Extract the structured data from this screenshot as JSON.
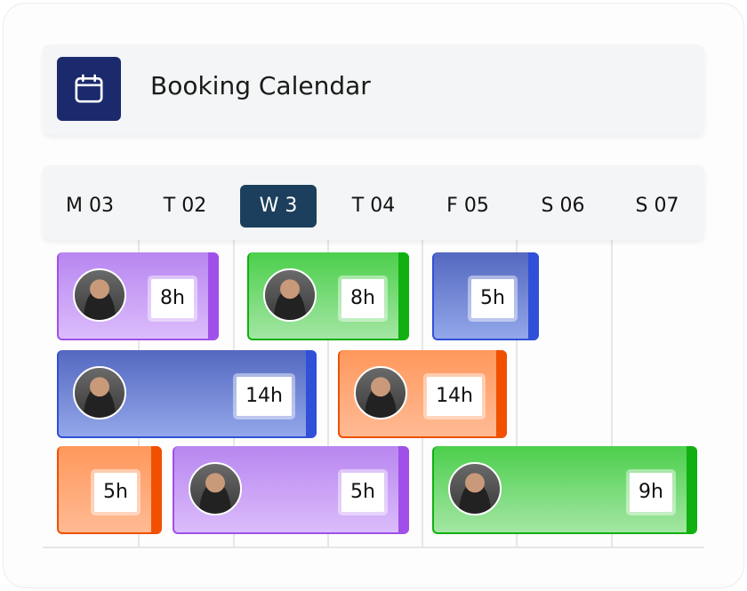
{
  "header": {
    "title": "Booking Calendar",
    "icon": "calendar-icon",
    "icon_bg": "#1a2a6c"
  },
  "days": [
    {
      "label": "M 03",
      "active": false
    },
    {
      "label": "T 02",
      "active": false
    },
    {
      "label": "W 3",
      "active": true
    },
    {
      "label": "T 04",
      "active": false
    },
    {
      "label": "F 05",
      "active": false
    },
    {
      "label": "S 06",
      "active": false
    },
    {
      "label": "S 07",
      "active": false
    }
  ],
  "bookings": [
    {
      "hours": "8h",
      "color": "purple",
      "avatar": true
    },
    {
      "hours": "8h",
      "color": "green",
      "avatar": true
    },
    {
      "hours": "5h",
      "color": "blue",
      "avatar": false
    },
    {
      "hours": "14h",
      "color": "blue",
      "avatar": true
    },
    {
      "hours": "14h",
      "color": "orange",
      "avatar": true
    },
    {
      "hours": "5h",
      "color": "orange",
      "avatar": false
    },
    {
      "hours": "5h",
      "color": "purple",
      "avatar": true
    },
    {
      "hours": "9h",
      "color": "green",
      "avatar": true
    }
  ],
  "colors": {
    "purple": "#a050e8",
    "green": "#10b010",
    "blue": "#3050d8",
    "orange": "#f05000",
    "active_day": "#1b3f5c"
  }
}
